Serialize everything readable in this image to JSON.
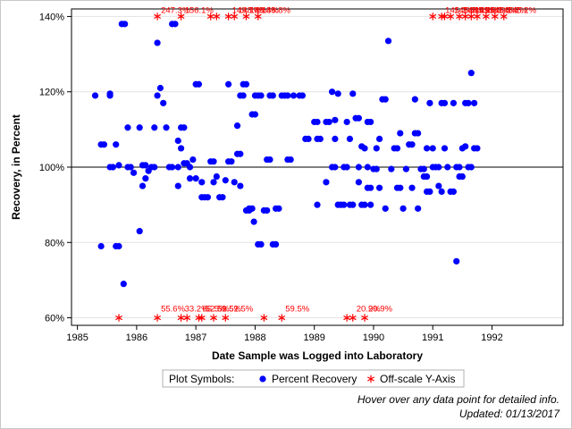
{
  "chart_data": {
    "type": "scatter",
    "title": "",
    "xlabel": "Date Sample was Logged into Laboratory",
    "ylabel": "Recovery, in Percent",
    "xlim": [
      1984.9,
      1993.2
    ],
    "ylim": [
      58,
      142
    ],
    "x_ticks": [
      1985,
      1986,
      1987,
      1988,
      1989,
      1990,
      1991,
      1992
    ],
    "y_ticks": [
      {
        "value": 60,
        "label": "60%"
      },
      {
        "value": 80,
        "label": "80%"
      },
      {
        "value": 100,
        "label": "100%"
      },
      {
        "value": 120,
        "label": "120%"
      },
      {
        "value": 140,
        "label": "140%"
      }
    ],
    "reference_line": 100,
    "grid": "horizontal",
    "legend": {
      "title": "Plot Symbols:",
      "placement": "bottom",
      "entries": [
        {
          "name": "Percent Recovery",
          "symbol": "dot",
          "color": "#0000ff"
        },
        {
          "name": "Off-scale Y-Axis",
          "symbol": "star",
          "color": "#ff0000"
        }
      ]
    },
    "series": [
      {
        "name": "Percent Recovery",
        "color": "#0000ff",
        "points": [
          [
            1985.3,
            119
          ],
          [
            1985.4,
            106
          ],
          [
            1985.45,
            106
          ],
          [
            1985.4,
            79
          ],
          [
            1985.55,
            100
          ],
          [
            1985.6,
            100
          ],
          [
            1985.55,
            119.5
          ],
          [
            1985.55,
            119
          ],
          [
            1985.65,
            79
          ],
          [
            1985.7,
            79
          ],
          [
            1985.65,
            106
          ],
          [
            1985.7,
            100.5
          ],
          [
            1985.75,
            138
          ],
          [
            1985.8,
            138
          ],
          [
            1985.78,
            69
          ],
          [
            1985.85,
            100
          ],
          [
            1985.85,
            110.5
          ],
          [
            1985.9,
            100
          ],
          [
            1985.95,
            98.5
          ],
          [
            1986.05,
            83
          ],
          [
            1986.05,
            110.5
          ],
          [
            1986.1,
            100.5
          ],
          [
            1986.15,
            100.5
          ],
          [
            1986.1,
            95
          ],
          [
            1986.15,
            97
          ],
          [
            1986.2,
            99
          ],
          [
            1986.25,
            100
          ],
          [
            1986.3,
            110.5
          ],
          [
            1986.3,
            100
          ],
          [
            1986.35,
            133
          ],
          [
            1986.35,
            119
          ],
          [
            1986.4,
            121
          ],
          [
            1986.45,
            117
          ],
          [
            1986.5,
            110.5
          ],
          [
            1986.55,
            100
          ],
          [
            1986.6,
            138
          ],
          [
            1986.65,
            138
          ],
          [
            1986.6,
            100
          ],
          [
            1986.7,
            100
          ],
          [
            1986.75,
            110.5
          ],
          [
            1986.8,
            110.5
          ],
          [
            1986.7,
            107
          ],
          [
            1986.75,
            105
          ],
          [
            1986.7,
            95
          ],
          [
            1986.8,
            101
          ],
          [
            1986.85,
            101
          ],
          [
            1986.9,
            100
          ],
          [
            1986.95,
            102
          ],
          [
            1986.9,
            97
          ],
          [
            1987.0,
            97
          ],
          [
            1987.0,
            122
          ],
          [
            1987.05,
            122
          ],
          [
            1987.1,
            96
          ],
          [
            1987.1,
            92
          ],
          [
            1987.15,
            92
          ],
          [
            1987.2,
            92
          ],
          [
            1987.25,
            101.5
          ],
          [
            1987.3,
            101.5
          ],
          [
            1987.3,
            96
          ],
          [
            1987.35,
            97.5
          ],
          [
            1987.4,
            92
          ],
          [
            1987.45,
            92
          ],
          [
            1987.5,
            96.5
          ],
          [
            1987.55,
            122
          ],
          [
            1987.55,
            101.5
          ],
          [
            1987.6,
            101.5
          ],
          [
            1987.65,
            96
          ],
          [
            1987.7,
            103.5
          ],
          [
            1987.75,
            103.5
          ],
          [
            1987.7,
            111
          ],
          [
            1987.75,
            95
          ],
          [
            1987.75,
            119
          ],
          [
            1987.8,
            122
          ],
          [
            1987.85,
            122
          ],
          [
            1987.8,
            119
          ],
          [
            1987.85,
            88.5
          ],
          [
            1987.9,
            88.5
          ],
          [
            1987.9,
            89
          ],
          [
            1987.95,
            89
          ],
          [
            1987.95,
            114
          ],
          [
            1988.0,
            114
          ],
          [
            1987.98,
            85.5
          ],
          [
            1988.0,
            119
          ],
          [
            1988.05,
            119
          ],
          [
            1988.05,
            79.5
          ],
          [
            1988.1,
            79.5
          ],
          [
            1988.1,
            119
          ],
          [
            1988.15,
            88.5
          ],
          [
            1988.2,
            88.5
          ],
          [
            1988.2,
            102
          ],
          [
            1988.25,
            102
          ],
          [
            1988.25,
            119
          ],
          [
            1988.3,
            119
          ],
          [
            1988.3,
            79.5
          ],
          [
            1988.35,
            79.5
          ],
          [
            1988.35,
            89
          ],
          [
            1988.4,
            89
          ],
          [
            1988.45,
            119
          ],
          [
            1988.5,
            119
          ],
          [
            1988.55,
            102
          ],
          [
            1988.6,
            102
          ],
          [
            1988.55,
            119
          ],
          [
            1988.65,
            119
          ],
          [
            1988.75,
            119
          ],
          [
            1988.8,
            119
          ],
          [
            1988.85,
            107.5
          ],
          [
            1988.9,
            107.5
          ],
          [
            1989.0,
            112
          ],
          [
            1989.05,
            112
          ],
          [
            1989.05,
            107.5
          ],
          [
            1989.1,
            107.5
          ],
          [
            1989.05,
            90
          ],
          [
            1989.2,
            112
          ],
          [
            1989.25,
            112
          ],
          [
            1989.2,
            96
          ],
          [
            1989.3,
            100
          ],
          [
            1989.35,
            100
          ],
          [
            1989.35,
            107.5
          ],
          [
            1989.3,
            120
          ],
          [
            1989.4,
            119.5
          ],
          [
            1989.35,
            112.5
          ],
          [
            1989.4,
            90
          ],
          [
            1989.45,
            90
          ],
          [
            1989.5,
            90
          ],
          [
            1989.5,
            100
          ],
          [
            1989.55,
            100
          ],
          [
            1989.55,
            112
          ],
          [
            1989.6,
            107.5
          ],
          [
            1989.6,
            90
          ],
          [
            1989.65,
            90
          ],
          [
            1989.65,
            119.5
          ],
          [
            1989.7,
            113
          ],
          [
            1989.75,
            113
          ],
          [
            1989.75,
            100
          ],
          [
            1989.8,
            90
          ],
          [
            1989.85,
            90
          ],
          [
            1989.8,
            105.5
          ],
          [
            1989.85,
            105
          ],
          [
            1989.75,
            96
          ],
          [
            1989.9,
            112
          ],
          [
            1989.95,
            112
          ],
          [
            1989.9,
            100
          ],
          [
            1989.9,
            94.5
          ],
          [
            1989.95,
            94.5
          ],
          [
            1989.95,
            90
          ],
          [
            1990.0,
            99.5
          ],
          [
            1990.05,
            99.5
          ],
          [
            1990.05,
            105
          ],
          [
            1990.1,
            107.5
          ],
          [
            1990.1,
            94.5
          ],
          [
            1990.15,
            118
          ],
          [
            1990.2,
            118
          ],
          [
            1990.2,
            89
          ],
          [
            1990.25,
            133.5
          ],
          [
            1990.3,
            99.5
          ],
          [
            1990.35,
            105
          ],
          [
            1990.4,
            105
          ],
          [
            1990.4,
            94.5
          ],
          [
            1990.45,
            94.5
          ],
          [
            1990.45,
            109
          ],
          [
            1990.5,
            89
          ],
          [
            1990.55,
            99.5
          ],
          [
            1990.6,
            106
          ],
          [
            1990.65,
            106
          ],
          [
            1990.65,
            94.5
          ],
          [
            1990.7,
            118
          ],
          [
            1990.7,
            109
          ],
          [
            1990.75,
            109
          ],
          [
            1990.75,
            89
          ],
          [
            1990.8,
            99.5
          ],
          [
            1990.85,
            99.5
          ],
          [
            1990.85,
            97.5
          ],
          [
            1990.9,
            97.5
          ],
          [
            1990.9,
            105
          ],
          [
            1990.9,
            93.5
          ],
          [
            1990.95,
            93.5
          ],
          [
            1990.95,
            117
          ],
          [
            1991.0,
            100
          ],
          [
            1991.0,
            105
          ],
          [
            1991.05,
            100
          ],
          [
            1991.1,
            100
          ],
          [
            1991.1,
            95
          ],
          [
            1991.15,
            93.5
          ],
          [
            1991.15,
            117
          ],
          [
            1991.2,
            117
          ],
          [
            1991.2,
            105
          ],
          [
            1991.25,
            100
          ],
          [
            1991.3,
            93.5
          ],
          [
            1991.35,
            93.5
          ],
          [
            1991.35,
            117
          ],
          [
            1991.4,
            75
          ],
          [
            1991.4,
            100
          ],
          [
            1991.45,
            100
          ],
          [
            1991.45,
            97.5
          ],
          [
            1991.5,
            97.5
          ],
          [
            1991.5,
            105
          ],
          [
            1991.55,
            105.5
          ],
          [
            1991.55,
            117
          ],
          [
            1991.6,
            117
          ],
          [
            1991.6,
            100
          ],
          [
            1991.65,
            100
          ],
          [
            1991.65,
            125
          ],
          [
            1991.7,
            105
          ],
          [
            1991.75,
            105
          ],
          [
            1991.7,
            117
          ]
        ]
      },
      {
        "name": "Off-scale Y-Axis",
        "color": "#ff0000",
        "points": [
          {
            "x": 1985.7,
            "y": 60,
            "label": ""
          },
          {
            "x": 1986.35,
            "y": 60,
            "label": "55.6%"
          },
          {
            "x": 1986.75,
            "y": 60,
            "label": "33.2%"
          },
          {
            "x": 1986.85,
            "y": 60,
            "label": ""
          },
          {
            "x": 1987.05,
            "y": 60,
            "label": "65.5%"
          },
          {
            "x": 1987.1,
            "y": 60,
            "label": "52.5%"
          },
          {
            "x": 1987.3,
            "y": 60,
            "label": "52.5%"
          },
          {
            "x": 1987.5,
            "y": 60,
            "label": "52.5%"
          },
          {
            "x": 1988.15,
            "y": 60,
            "label": ""
          },
          {
            "x": 1988.45,
            "y": 60,
            "label": "59.5%"
          },
          {
            "x": 1989.55,
            "y": 60,
            "label": ""
          },
          {
            "x": 1989.65,
            "y": 60,
            "label": "20.9%"
          },
          {
            "x": 1989.85,
            "y": 60,
            "label": "20.9%"
          },
          {
            "x": 1986.35,
            "y": 140,
            "label": "247.3%"
          },
          {
            "x": 1986.75,
            "y": 140,
            "label": "156.1%"
          },
          {
            "x": 1987.25,
            "y": 140,
            "label": ""
          },
          {
            "x": 1987.35,
            "y": 140,
            "label": ""
          },
          {
            "x": 1987.55,
            "y": 140,
            "label": "149.7%"
          },
          {
            "x": 1987.65,
            "y": 140,
            "label": "148.8%"
          },
          {
            "x": 1987.85,
            "y": 140,
            "label": "148.8%"
          },
          {
            "x": 1988.05,
            "y": 140,
            "label": "148.8%"
          },
          {
            "x": 1991.0,
            "y": 140,
            "label": ""
          },
          {
            "x": 1991.15,
            "y": 140,
            "label": "145.2%"
          },
          {
            "x": 1991.2,
            "y": 140,
            "label": ""
          },
          {
            "x": 1991.3,
            "y": 140,
            "label": "145.2%"
          },
          {
            "x": 1991.45,
            "y": 140,
            "label": "145.2%"
          },
          {
            "x": 1991.55,
            "y": 140,
            "label": "145.2%"
          },
          {
            "x": 1991.65,
            "y": 140,
            "label": "145.2%"
          },
          {
            "x": 1991.75,
            "y": 140,
            "label": "145.2%"
          },
          {
            "x": 1991.9,
            "y": 140,
            "label": "145.2%"
          },
          {
            "x": 1992.05,
            "y": 140,
            "label": "145.2%"
          },
          {
            "x": 1992.2,
            "y": 140,
            "label": "145.2%"
          }
        ]
      }
    ]
  },
  "footnotes": {
    "hover_hint": "Hover over any data point for detailed info.",
    "updated": "Updated: 01/13/2017"
  }
}
